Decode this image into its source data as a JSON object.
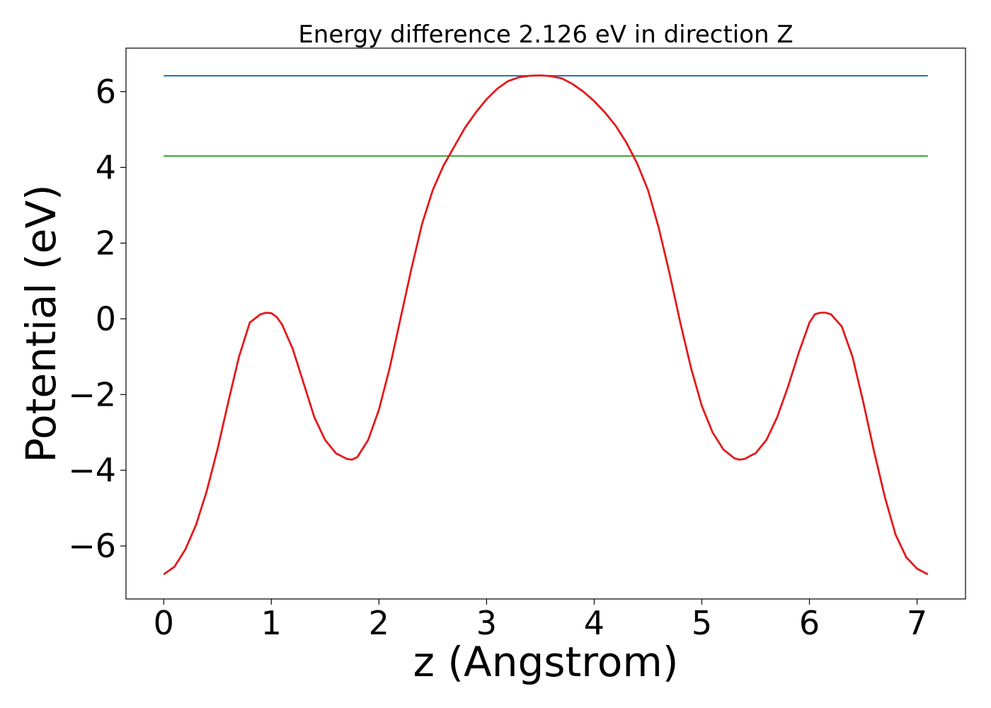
{
  "chart_data": {
    "type": "line",
    "title": "Energy difference 2.126 eV in direction Z",
    "xlabel": "z (Angstrom)",
    "ylabel": "Potential (eV)",
    "xlim": [
      -0.35,
      7.45
    ],
    "ylim": [
      -7.4,
      7.15
    ],
    "xticks": [
      0,
      1,
      2,
      3,
      4,
      5,
      6,
      7
    ],
    "xtick_labels": [
      "0",
      "1",
      "2",
      "3",
      "4",
      "5",
      "6",
      "7"
    ],
    "yticks": [
      -6,
      -4,
      -2,
      0,
      2,
      4,
      6
    ],
    "ytick_labels": [
      "−6",
      "−4",
      "−2",
      "0",
      "2",
      "4",
      "6"
    ],
    "grid": false,
    "series": [
      {
        "color": "#1f77b4",
        "style": "horizontal",
        "x": [
          0,
          7.1
        ],
        "y": [
          6.42,
          6.42
        ]
      },
      {
        "color": "#2ca02c",
        "style": "horizontal",
        "x": [
          0,
          7.1
        ],
        "y": [
          4.3,
          4.3
        ]
      },
      {
        "color": "#e41a1c",
        "style": "curve",
        "x": [
          0,
          0.1,
          0.2,
          0.3,
          0.4,
          0.5,
          0.6,
          0.7,
          0.8,
          0.9,
          0.95,
          1.0,
          1.05,
          1.1,
          1.2,
          1.3,
          1.4,
          1.5,
          1.6,
          1.7,
          1.75,
          1.8,
          1.9,
          2.0,
          2.1,
          2.2,
          2.3,
          2.4,
          2.5,
          2.6,
          2.7,
          2.8,
          2.9,
          3.0,
          3.1,
          3.2,
          3.3,
          3.4,
          3.5,
          3.55,
          3.6,
          3.7,
          3.8,
          3.9,
          4.0,
          4.1,
          4.2,
          4.3,
          4.4,
          4.5,
          4.6,
          4.7,
          4.8,
          4.9,
          5.0,
          5.1,
          5.2,
          5.3,
          5.35,
          5.4,
          5.45,
          5.5,
          5.6,
          5.7,
          5.8,
          5.9,
          6.0,
          6.05,
          6.1,
          6.15,
          6.2,
          6.3,
          6.4,
          6.5,
          6.6,
          6.7,
          6.8,
          6.9,
          7.0,
          7.1
        ],
        "y": [
          -6.75,
          -6.55,
          -6.1,
          -5.45,
          -4.55,
          -3.45,
          -2.2,
          -1.0,
          -0.1,
          0.12,
          0.16,
          0.15,
          0.05,
          -0.15,
          -0.8,
          -1.7,
          -2.6,
          -3.2,
          -3.55,
          -3.7,
          -3.72,
          -3.65,
          -3.2,
          -2.4,
          -1.3,
          0.0,
          1.3,
          2.5,
          3.4,
          4.05,
          4.55,
          5.05,
          5.45,
          5.8,
          6.08,
          6.28,
          6.38,
          6.42,
          6.43,
          6.42,
          6.41,
          6.35,
          6.2,
          6.0,
          5.75,
          5.45,
          5.1,
          4.65,
          4.1,
          3.4,
          2.4,
          1.2,
          -0.1,
          -1.3,
          -2.3,
          -3.0,
          -3.45,
          -3.68,
          -3.72,
          -3.7,
          -3.62,
          -3.55,
          -3.2,
          -2.6,
          -1.8,
          -0.9,
          -0.1,
          0.12,
          0.16,
          0.16,
          0.12,
          -0.2,
          -1.0,
          -2.2,
          -3.5,
          -4.7,
          -5.7,
          -6.3,
          -6.6,
          -6.75
        ]
      }
    ]
  }
}
